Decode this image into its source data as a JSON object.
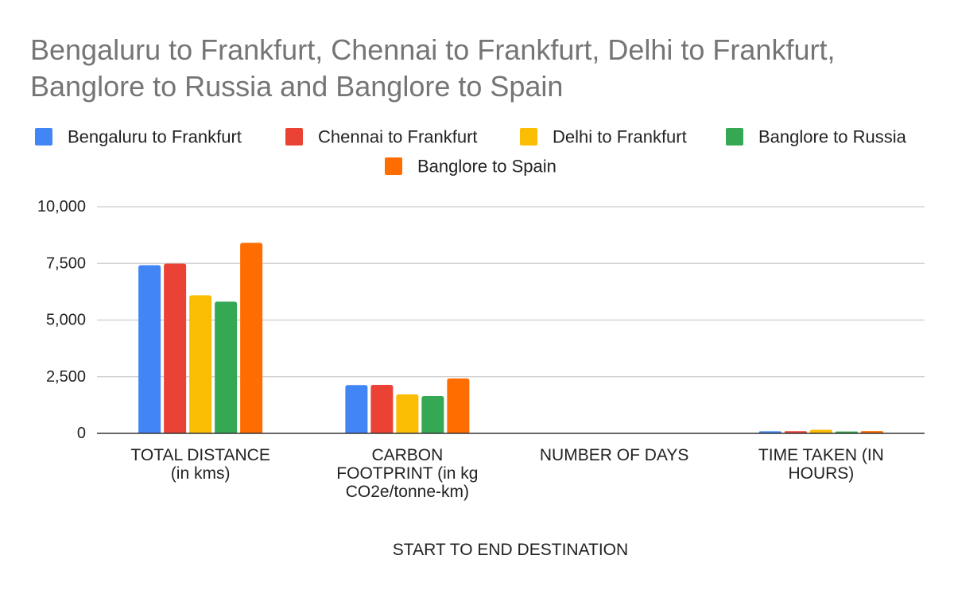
{
  "chart_data": {
    "type": "bar",
    "title_lines": [
      "Bengaluru to Frankfurt, Chennai to Frankfurt, Delhi to Frankfurt,",
      "Banglore to Russia and Banglore to Spain"
    ],
    "xlabel": "START TO END DESTINATION",
    "ylabel": "",
    "ylim": [
      0,
      10000
    ],
    "yticks": [
      0,
      2500,
      5000,
      7500,
      10000
    ],
    "ytick_labels": [
      "0",
      "2,500",
      "5,000",
      "7,500",
      "10,000"
    ],
    "grid": true,
    "legend_position": "top",
    "categories": [
      [
        "TOTAL DISTANCE",
        "(in kms)"
      ],
      [
        "CARBON",
        "FOOTPRINT (in kg",
        "CO2e/tonne-km)"
      ],
      [
        "NUMBER OF DAYS"
      ],
      [
        "TIME TAKEN (IN",
        "HOURS)"
      ]
    ],
    "series": [
      {
        "name": "Bengaluru to Frankfurt",
        "color": "#4285f4",
        "values": [
          7420,
          2130,
          0,
          90
        ]
      },
      {
        "name": "Chennai to Frankfurt",
        "color": "#ea4335",
        "values": [
          7490,
          2140,
          0,
          95
        ]
      },
      {
        "name": "Delhi to Frankfurt",
        "color": "#fbbc04",
        "values": [
          6090,
          1720,
          0,
          160
        ]
      },
      {
        "name": "Banglore to Russia",
        "color": "#34a853",
        "values": [
          5810,
          1650,
          0,
          85
        ]
      },
      {
        "name": "Banglore to Spain",
        "color": "#ff6d01",
        "values": [
          8410,
          2420,
          0,
          100
        ]
      }
    ]
  }
}
